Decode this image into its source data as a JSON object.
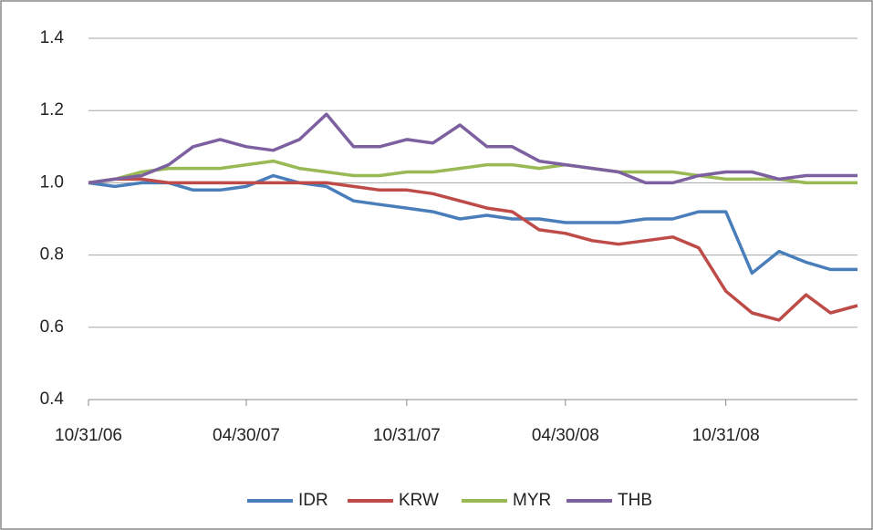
{
  "chart_data": {
    "type": "line",
    "x": [
      "10/31/06",
      "11/30/06",
      "12/31/06",
      "01/31/07",
      "02/28/07",
      "03/31/07",
      "04/30/07",
      "05/31/07",
      "06/30/07",
      "07/31/07",
      "08/31/07",
      "09/30/07",
      "10/31/07",
      "11/30/07",
      "12/31/07",
      "01/31/08",
      "02/29/08",
      "03/31/08",
      "04/30/08",
      "05/31/08",
      "06/30/08",
      "07/31/08",
      "08/31/08",
      "09/30/08",
      "10/31/08",
      "11/30/08",
      "12/31/08",
      "01/31/09",
      "02/28/09",
      "03/31/09"
    ],
    "xlim": [
      "10/31/06",
      "03/31/09"
    ],
    "xticks": [
      "10/31/06",
      "04/30/07",
      "10/31/07",
      "04/30/08",
      "10/31/08"
    ],
    "ylim": [
      0.4,
      1.4
    ],
    "yticks": [
      0.4,
      0.6,
      0.8,
      {
        "value": 1,
        "label": "1.0"
      },
      1.2,
      1.4
    ],
    "grid": true,
    "legend": "bottom",
    "series": [
      {
        "name": "IDR",
        "color": "#4a7ebb",
        "values": [
          1.0,
          0.99,
          1.0,
          1.0,
          0.98,
          0.98,
          0.99,
          1.02,
          1.0,
          0.99,
          0.95,
          0.94,
          0.93,
          0.92,
          0.9,
          0.91,
          0.9,
          0.9,
          0.89,
          0.89,
          0.89,
          0.9,
          0.9,
          0.92,
          0.92,
          0.75,
          0.81,
          0.78,
          0.76,
          0.76
        ]
      },
      {
        "name": "KRW",
        "color": "#be4b48",
        "values": [
          1.0,
          1.01,
          1.01,
          1.0,
          1.0,
          1.0,
          1.0,
          1.0,
          1.0,
          1.0,
          0.99,
          0.98,
          0.98,
          0.97,
          0.95,
          0.93,
          0.92,
          0.87,
          0.86,
          0.84,
          0.83,
          0.84,
          0.85,
          0.82,
          0.7,
          0.64,
          0.62,
          0.69,
          0.64,
          0.66
        ]
      },
      {
        "name": "MYR",
        "color": "#98b954",
        "values": [
          1.0,
          1.01,
          1.03,
          1.04,
          1.04,
          1.04,
          1.05,
          1.06,
          1.04,
          1.03,
          1.02,
          1.02,
          1.03,
          1.03,
          1.04,
          1.05,
          1.05,
          1.04,
          1.05,
          1.04,
          1.03,
          1.03,
          1.03,
          1.02,
          1.01,
          1.01,
          1.01,
          1.0,
          1.0,
          1.0
        ]
      },
      {
        "name": "THB",
        "color": "#7d60a0",
        "values": [
          1.0,
          1.01,
          1.02,
          1.05,
          1.1,
          1.12,
          1.1,
          1.09,
          1.12,
          1.19,
          1.1,
          1.1,
          1.12,
          1.11,
          1.16,
          1.1,
          1.1,
          1.06,
          1.05,
          1.04,
          1.03,
          1.0,
          1.0,
          1.02,
          1.03,
          1.03,
          1.01,
          1.02,
          1.02,
          1.02
        ]
      }
    ]
  }
}
